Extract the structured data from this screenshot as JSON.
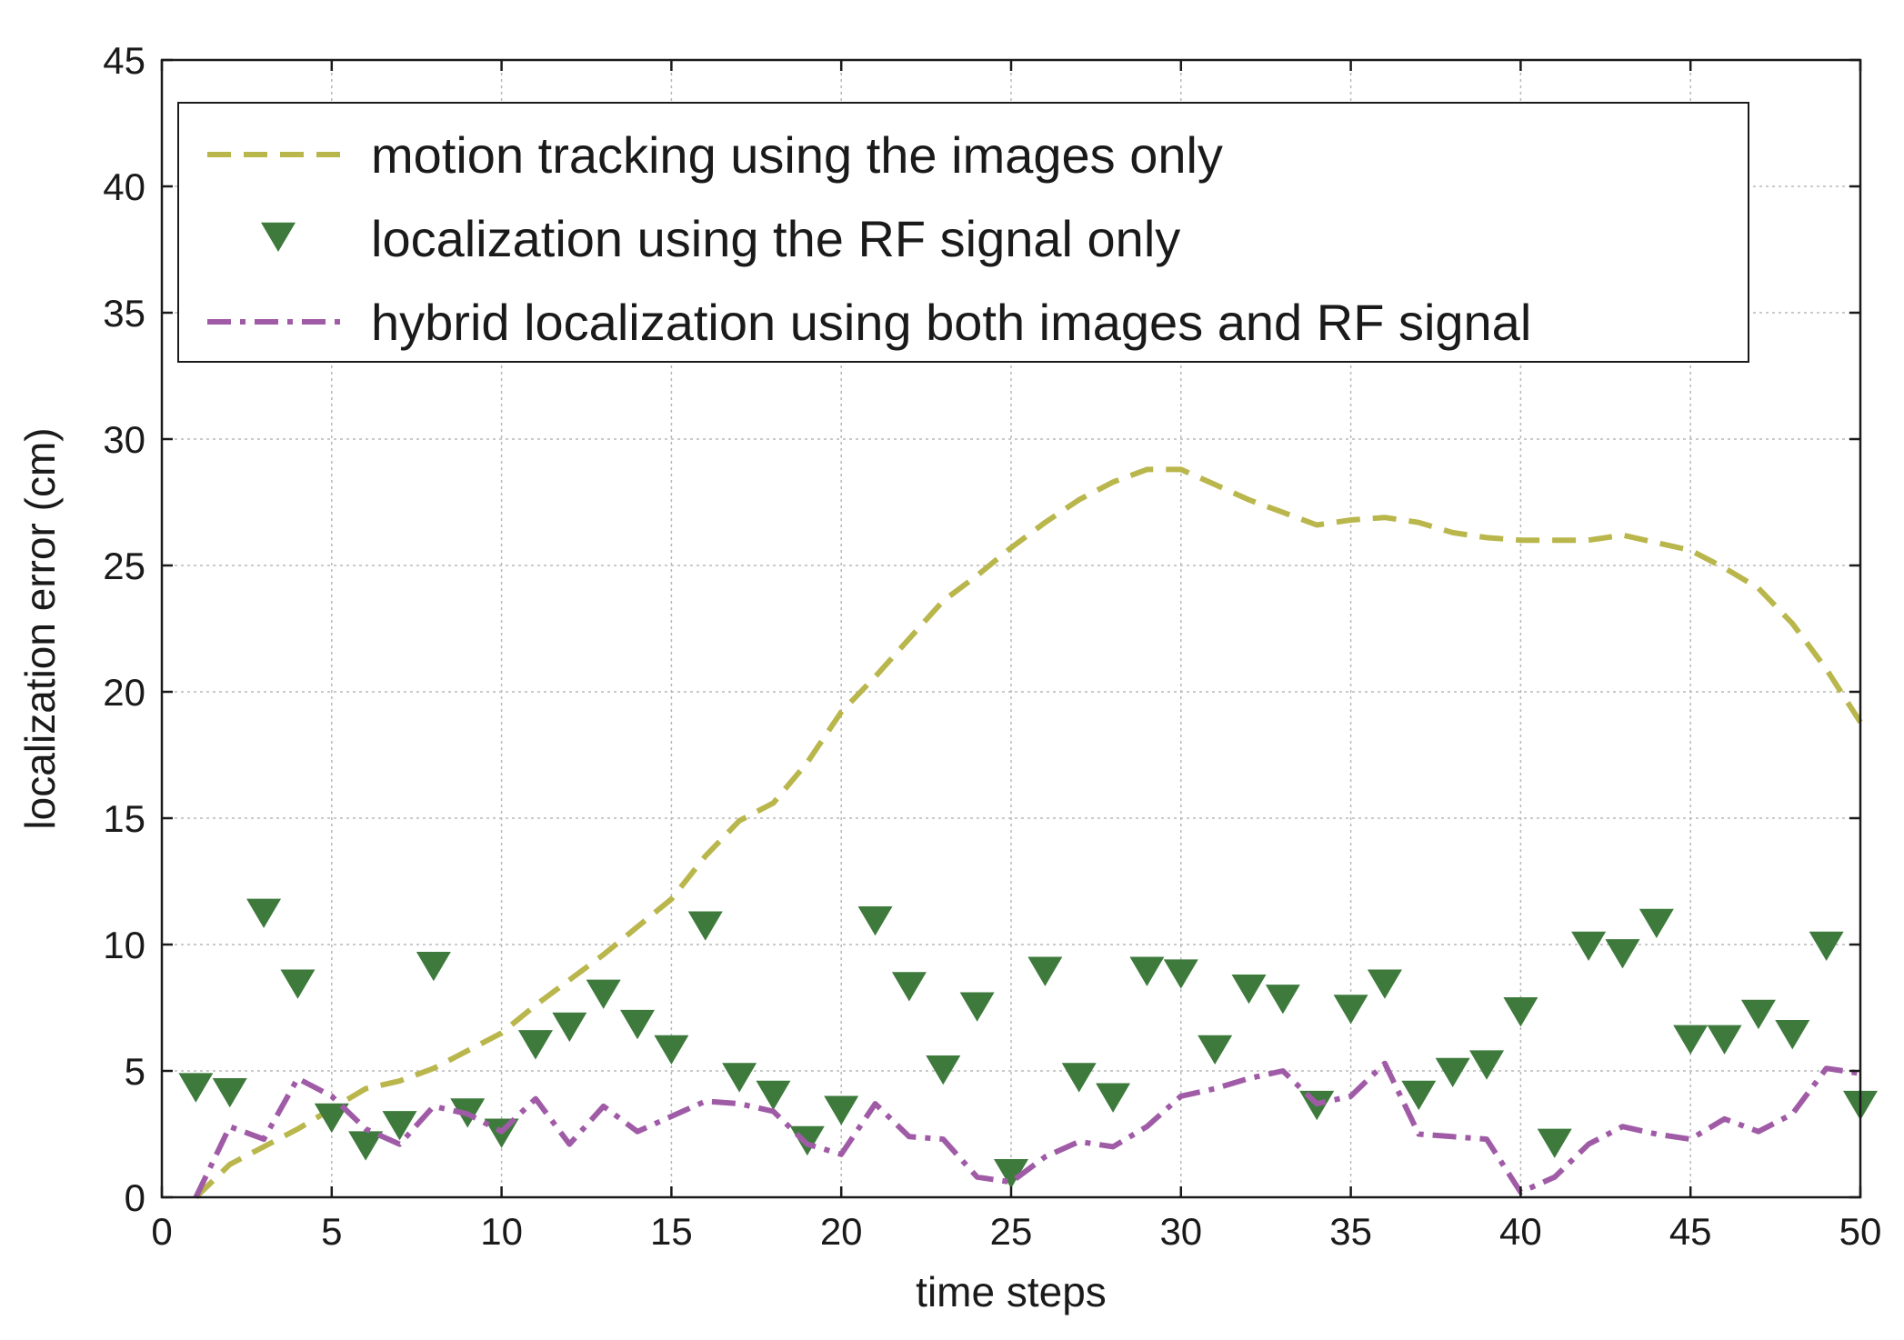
{
  "colors": {
    "motion": "#b9b64c",
    "rf": "#3d7a3c",
    "hybrid": "#a05ba6",
    "axis": "#1a1a1a",
    "grid": "#b8b8b8"
  },
  "chart_data": {
    "type": "line",
    "xlabel": "time steps",
    "ylabel": "localization error (cm)",
    "xlim": [
      0,
      50
    ],
    "ylim": [
      0,
      45
    ],
    "xticks": [
      0,
      5,
      10,
      15,
      20,
      25,
      30,
      35,
      40,
      45,
      50
    ],
    "yticks": [
      0,
      5,
      10,
      15,
      20,
      25,
      30,
      35,
      40,
      45
    ],
    "grid": true,
    "legend_position": "top",
    "x": [
      1,
      2,
      3,
      4,
      5,
      6,
      7,
      8,
      9,
      10,
      11,
      12,
      13,
      14,
      15,
      16,
      17,
      18,
      19,
      20,
      21,
      22,
      23,
      24,
      25,
      26,
      27,
      28,
      29,
      30,
      31,
      32,
      33,
      34,
      35,
      36,
      37,
      38,
      39,
      40,
      41,
      42,
      43,
      44,
      45,
      46,
      47,
      48,
      49,
      50
    ],
    "series": [
      {
        "name": "motion tracking using the images only",
        "style": "dashed",
        "color": "#b9b64c",
        "values": [
          0.0,
          1.3,
          2.0,
          2.7,
          3.5,
          4.3,
          4.6,
          5.1,
          5.8,
          6.5,
          7.6,
          8.6,
          9.6,
          10.7,
          11.8,
          13.5,
          14.9,
          15.6,
          17.2,
          19.2,
          20.6,
          22.1,
          23.6,
          24.6,
          25.7,
          26.7,
          27.6,
          28.3,
          28.8,
          28.8,
          28.2,
          27.6,
          27.1,
          26.6,
          26.8,
          26.9,
          26.7,
          26.3,
          26.1,
          26.0,
          26.0,
          26.0,
          26.2,
          25.9,
          25.6,
          24.9,
          24.1,
          22.7,
          20.9,
          18.8
        ]
      },
      {
        "name": "localization using the RF signal only",
        "style": "triangle-down markers",
        "color": "#3d7a3c",
        "values": [
          4.4,
          4.2,
          11.3,
          8.5,
          3.2,
          2.1,
          2.9,
          9.2,
          3.4,
          2.6,
          6.1,
          6.8,
          8.1,
          6.9,
          5.9,
          10.8,
          4.8,
          4.1,
          2.3,
          3.5,
          11.0,
          8.4,
          5.1,
          7.6,
          1.0,
          9.0,
          4.8,
          4.0,
          9.0,
          8.9,
          5.9,
          8.3,
          7.9,
          3.7,
          7.5,
          8.5,
          4.1,
          5.0,
          5.3,
          7.4,
          2.2,
          10.0,
          9.7,
          10.9,
          6.3,
          6.3,
          7.3,
          6.5,
          10.0,
          3.7
        ]
      },
      {
        "name": "hybrid localization using both images and RF signal",
        "style": "dash-dot",
        "color": "#a05ba6",
        "values": [
          0.0,
          2.8,
          2.3,
          4.7,
          4.0,
          2.7,
          2.1,
          3.6,
          3.3,
          2.6,
          3.9,
          2.1,
          3.6,
          2.6,
          3.2,
          3.8,
          3.7,
          3.4,
          2.1,
          1.7,
          3.7,
          2.4,
          2.3,
          0.8,
          0.6,
          1.6,
          2.2,
          2.0,
          2.8,
          4.0,
          4.3,
          4.7,
          5.0,
          3.7,
          4.0,
          5.3,
          2.5,
          2.4,
          2.3,
          0.2,
          0.8,
          2.1,
          2.8,
          2.5,
          2.3,
          3.1,
          2.6,
          3.3,
          5.1,
          4.9
        ]
      }
    ]
  }
}
